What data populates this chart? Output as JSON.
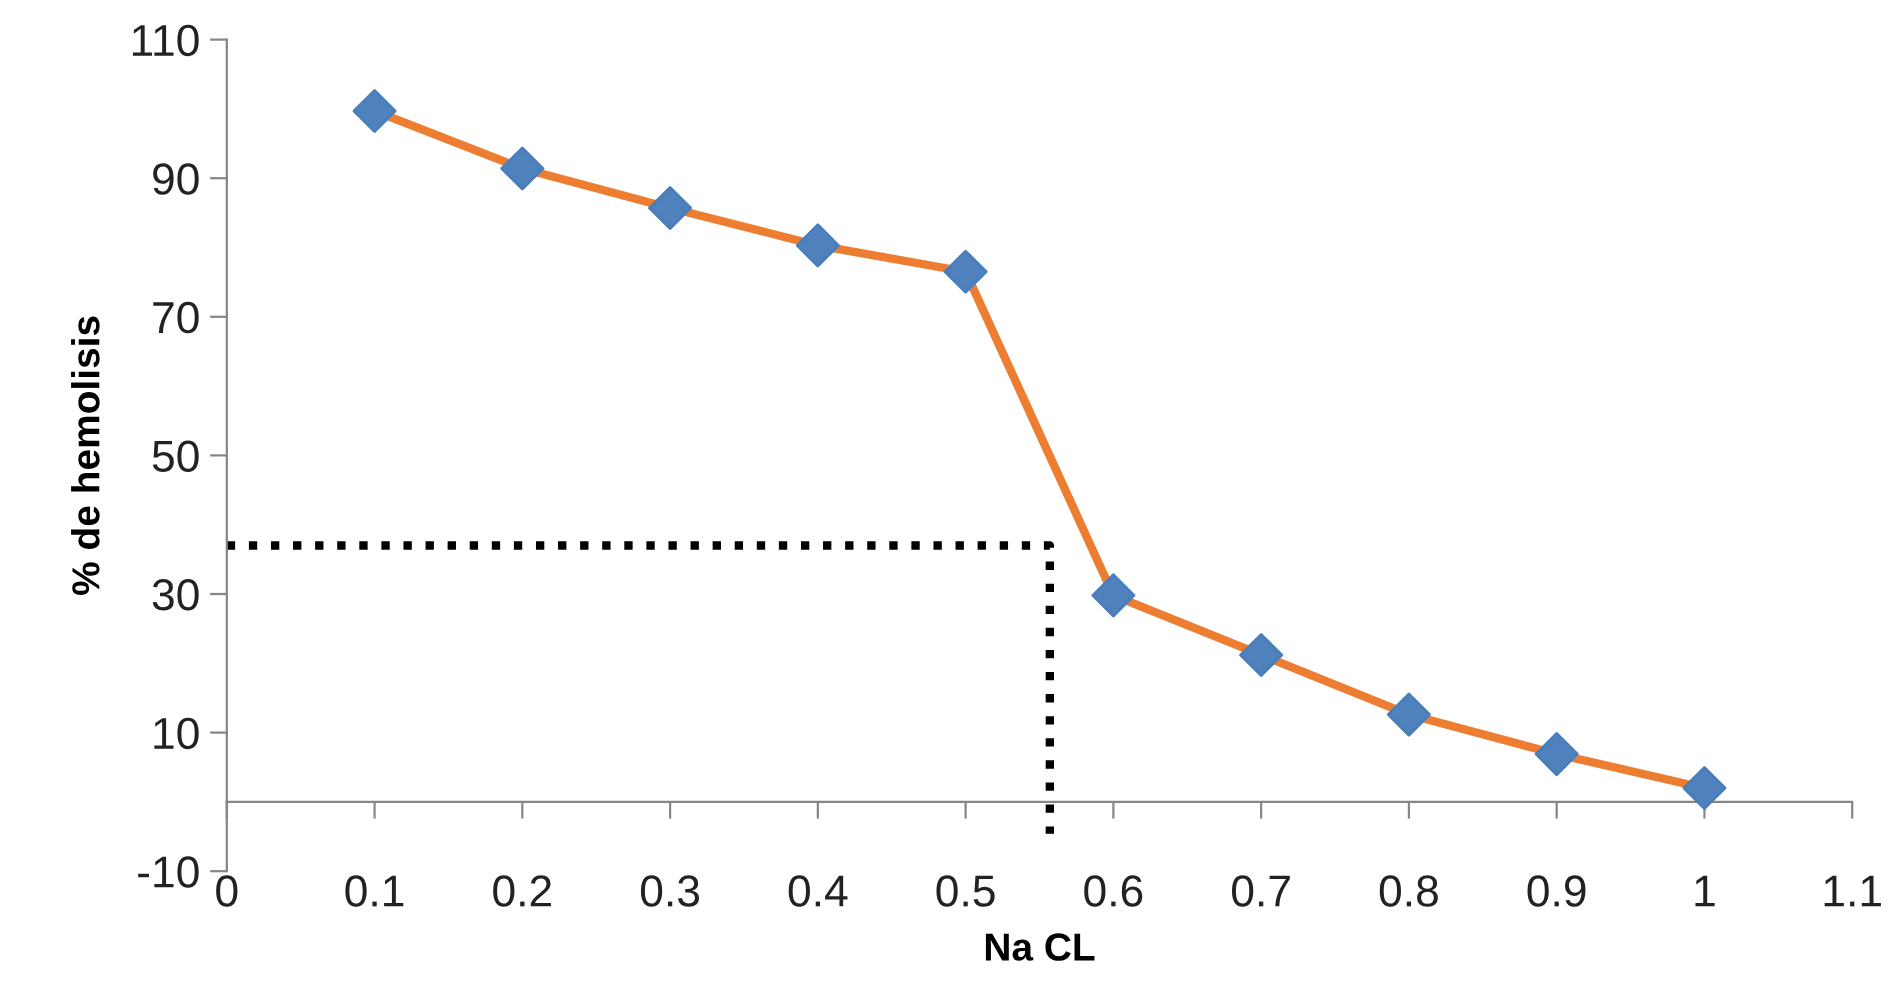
{
  "chart_data": {
    "type": "line",
    "xlabel": "Na CL",
    "ylabel": "% de hemolisis",
    "xlim": [
      0,
      1.1
    ],
    "xticks": [
      0,
      0.1,
      0.2,
      0.3,
      0.4,
      0.5,
      0.6,
      0.7,
      0.8,
      0.9,
      1,
      1.1
    ],
    "ylim": [
      -10,
      110
    ],
    "yticks": [
      -10,
      10,
      30,
      50,
      70,
      90,
      110
    ],
    "grid": false,
    "series": [
      {
        "color": "#ed7d31",
        "marker": "diamond",
        "line_style": "solid",
        "x": [
          0.1,
          0.2,
          0.3,
          0.4,
          0.5,
          0.6,
          0.7,
          0.8,
          0.9,
          1
        ],
        "values": [
          99.7,
          91.4,
          85.7,
          80.3,
          76.5,
          29.8,
          21.2,
          12.6,
          6.9,
          2.0
        ]
      },
      {
        "color": "#000000",
        "marker": "none",
        "line_style": "dotted",
        "x": [
          0,
          0.557,
          0.557
        ],
        "values": [
          37.0,
          37.0,
          -4.6
        ]
      }
    ]
  }
}
